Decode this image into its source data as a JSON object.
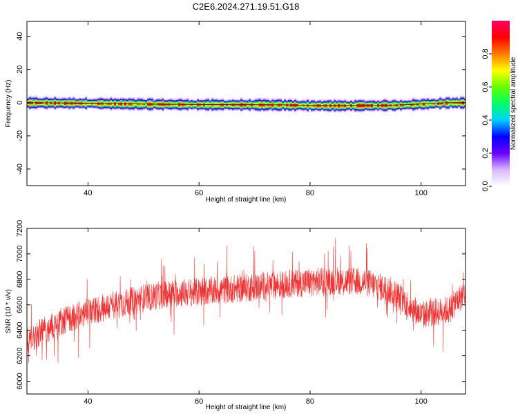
{
  "title": "C2E6.2024.271.19.51.G18",
  "chart_data": [
    {
      "type": "heatmap",
      "name": "spectrogram",
      "xlabel": "Height of straight line (km)",
      "ylabel": "Frequency (Hz)",
      "xlim": [
        29,
        108
      ],
      "ylim": [
        -50,
        49
      ],
      "xticks": [
        "40",
        "60",
        "80",
        "100"
      ],
      "yticks": [
        "-40",
        "-20",
        "0",
        "20",
        "40"
      ],
      "ridge": {
        "x": [
          30,
          40,
          50,
          60,
          70,
          75,
          80,
          85,
          90,
          95,
          100,
          105,
          108
        ],
        "freq": [
          0.0,
          -0.3,
          -0.8,
          -1.1,
          -1.2,
          -1.3,
          -1.6,
          -1.7,
          -1.6,
          -1.5,
          -0.8,
          0.0,
          0.0
        ]
      },
      "colorbar": {
        "label": "Normalized spectral amplitude",
        "range": [
          0.0,
          1.0
        ],
        "ticks": [
          "0.0",
          "0.2",
          "0.4",
          "0.6",
          "0.8"
        ],
        "colors": [
          "#ffffff",
          "#d8b8ff",
          "#6a00ff",
          "#0000ff",
          "#00d0ff",
          "#00ff66",
          "#66ff00",
          "#ffff00",
          "#ff7a00",
          "#ff0000",
          "#ff0066"
        ]
      },
      "grid": false
    },
    {
      "type": "line",
      "name": "snr",
      "xlabel": "Height of straight line (km)",
      "ylabel": "SNR (10 * v/v)",
      "xlim": [
        29,
        108
      ],
      "ylim": [
        5900,
        7200
      ],
      "xticks": [
        "40",
        "60",
        "80",
        "100"
      ],
      "yticks": [
        "6000",
        "6200",
        "6400",
        "6600",
        "6800",
        "7000",
        "7200"
      ],
      "trend": {
        "x": [
          29,
          35,
          40,
          45,
          50,
          55,
          60,
          65,
          70,
          75,
          80,
          85,
          90,
          95,
          100,
          105,
          108
        ],
        "y": [
          6320,
          6470,
          6540,
          6600,
          6650,
          6690,
          6700,
          6720,
          6740,
          6760,
          6780,
          6790,
          6780,
          6700,
          6520,
          6560,
          6700
        ]
      },
      "color": "#ee3333",
      "grid": false
    }
  ]
}
